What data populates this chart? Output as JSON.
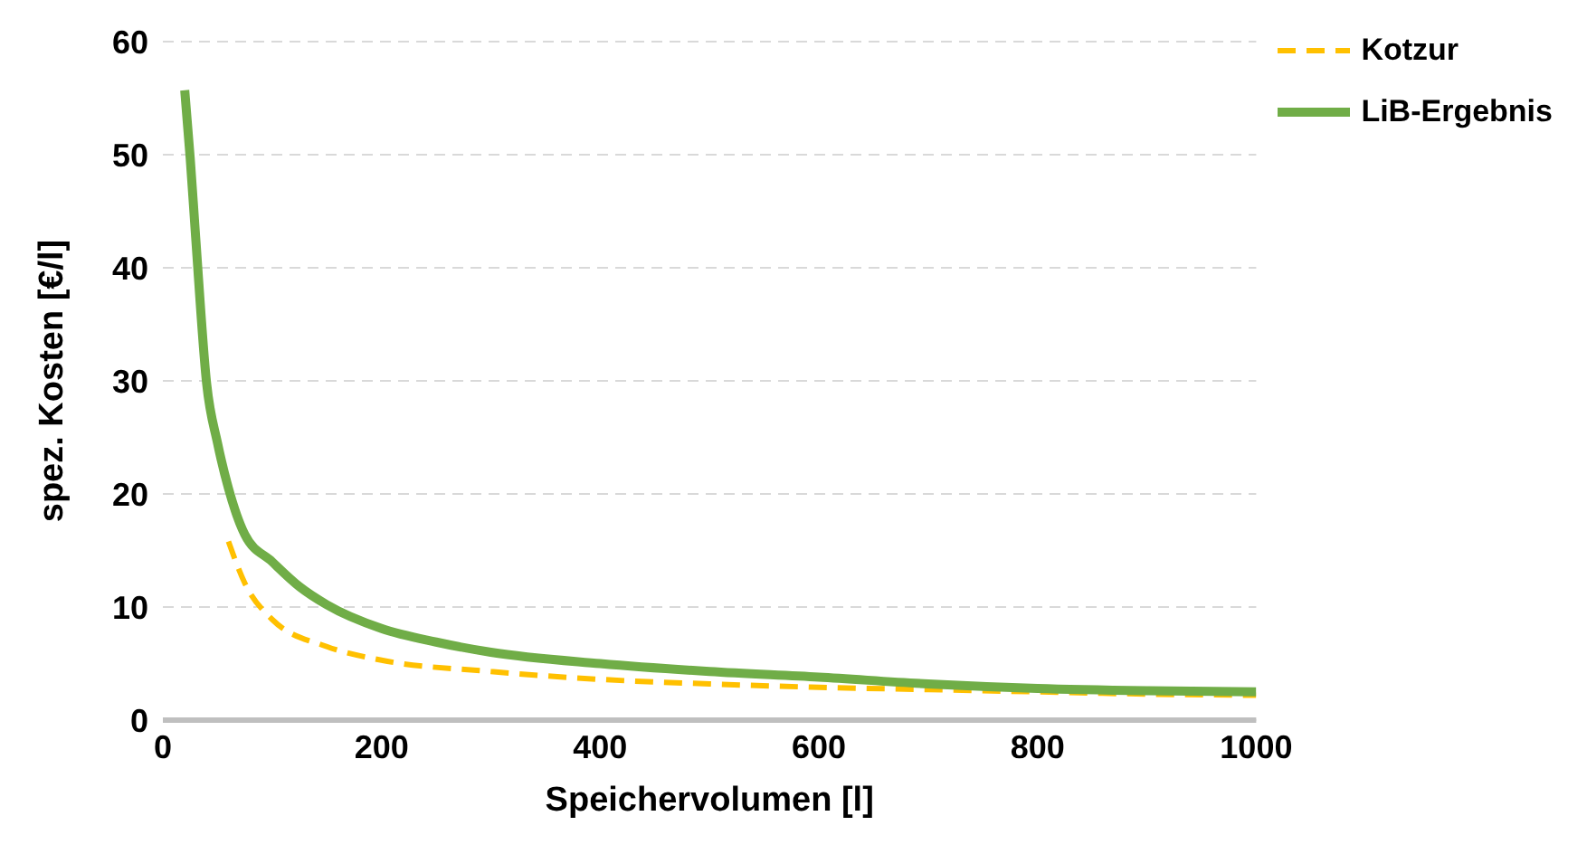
{
  "chart_data": {
    "type": "line",
    "xlabel": "Speichervolumen [l]",
    "ylabel": "spez. Kosten [€/l]",
    "xlim": [
      0,
      1000
    ],
    "xticks": [
      0,
      200,
      400,
      600,
      800,
      1000
    ],
    "ylim": [
      0,
      60
    ],
    "yticks": [
      0,
      10,
      20,
      30,
      40,
      50,
      60
    ],
    "grid": "y",
    "legend": "top right",
    "marker": "none",
    "series": [
      {
        "name": "Kotzur",
        "color": "#ffc000",
        "line_style": "dashed",
        "x": [
          60,
          75,
          100,
          150,
          200,
          300,
          400,
          500,
          600,
          700,
          800,
          900,
          1000
        ],
        "values": [
          15.8,
          12.1,
          8.9,
          6.5,
          5.3,
          4.3,
          3.6,
          3.2,
          2.9,
          2.7,
          2.5,
          2.3,
          2.2
        ]
      },
      {
        "name": "LiB-Ergebnis",
        "color": "#70ad47",
        "line_style": "solid",
        "x": [
          20,
          25,
          30,
          40,
          50,
          60,
          75,
          100,
          125,
          150,
          200,
          250,
          300,
          400,
          500,
          600,
          700,
          800,
          900,
          1000
        ],
        "values": [
          55.7,
          49.7,
          42.7,
          29.8,
          24.5,
          20.5,
          16.4,
          14.0,
          11.8,
          10.2,
          8.1,
          6.9,
          6.0,
          5.0,
          4.3,
          3.8,
          3.2,
          2.8,
          2.6,
          2.5
        ]
      }
    ]
  }
}
